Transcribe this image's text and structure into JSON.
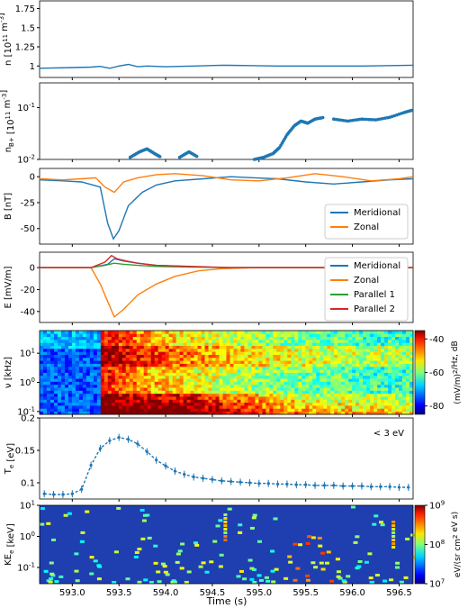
{
  "figure": {
    "xlabel": "Time (s)",
    "xlim": [
      592.65,
      596.65
    ],
    "xticks": [
      593.0,
      593.5,
      594.0,
      594.5,
      595.0,
      595.5,
      596.0,
      596.5
    ]
  },
  "chart_data": [
    {
      "type": "line",
      "ylabel": "n [10^11 m^-3]",
      "ylim": [
        0.85,
        1.85
      ],
      "yticks": [
        1.0,
        1.25,
        1.5,
        1.75
      ],
      "series": [
        {
          "color": "#1f77b4",
          "x": [
            592.65,
            592.8,
            593.0,
            593.2,
            593.3,
            593.4,
            593.5,
            593.6,
            593.7,
            593.8,
            594.0,
            594.3,
            594.6,
            594.9,
            595.2,
            595.5,
            595.8,
            596.1,
            596.4,
            596.65
          ],
          "y": [
            0.97,
            0.975,
            0.98,
            0.985,
            0.995,
            0.97,
            1.0,
            1.02,
            0.99,
            1.0,
            0.99,
            1.0,
            1.01,
            1.005,
            1.0,
            1.0,
            1.0,
            1.0,
            1.005,
            1.01
          ]
        }
      ]
    },
    {
      "type": "scatter",
      "ylabel": "n_B+ [10^11 m^-3]",
      "yscale": "log",
      "ylim": [
        0.01,
        0.3
      ],
      "yticks": [
        0.01,
        0.1
      ],
      "ytick_labels": [
        "10^-2",
        "10^-1"
      ],
      "series": [
        {
          "color": "#1f77b4",
          "segments": [
            {
              "x": [
                593.62,
                593.72,
                593.8,
                593.88,
                593.95
              ],
              "y": [
                0.011,
                0.014,
                0.016,
                0.013,
                0.011
              ]
            },
            {
              "x": [
                594.15,
                594.25,
                594.35
              ],
              "y": [
                0.011,
                0.014,
                0.011
              ]
            },
            {
              "x": [
                594.95,
                595.05,
                595.15,
                595.22,
                595.3,
                595.38,
                595.45,
                595.52,
                595.6,
                595.7
              ],
              "y": [
                0.01,
                0.011,
                0.013,
                0.017,
                0.03,
                0.045,
                0.055,
                0.05,
                0.06,
                0.065
              ]
            },
            {
              "x": [
                595.8,
                595.95,
                596.1,
                596.25,
                596.4,
                596.55,
                596.65
              ],
              "y": [
                0.06,
                0.055,
                0.06,
                0.058,
                0.065,
                0.08,
                0.09
              ]
            }
          ]
        }
      ]
    },
    {
      "type": "line",
      "ylabel": "B [nT]",
      "ylim": [
        -65,
        8
      ],
      "yticks": [
        0,
        -25,
        -50
      ],
      "legend": "lower right",
      "series": [
        {
          "name": "Meridional",
          "color": "#1f77b4",
          "x": [
            592.65,
            592.9,
            593.1,
            593.3,
            593.38,
            593.44,
            593.5,
            593.6,
            593.75,
            593.9,
            594.1,
            594.4,
            594.7,
            594.95,
            595.2,
            595.5,
            595.8,
            596.1,
            596.4,
            596.65
          ],
          "y": [
            -3,
            -4,
            -5,
            -10,
            -45,
            -60,
            -52,
            -28,
            -15,
            -8,
            -4,
            -2,
            0,
            -1,
            -2,
            -5,
            -7,
            -5,
            -3,
            -2
          ]
        },
        {
          "name": "Zonal",
          "color": "#ff7f0e",
          "x": [
            592.65,
            592.9,
            593.1,
            593.25,
            593.35,
            593.45,
            593.55,
            593.7,
            593.9,
            594.1,
            594.4,
            594.7,
            595.0,
            595.3,
            595.6,
            595.9,
            596.2,
            596.5,
            596.65
          ],
          "y": [
            -2,
            -3,
            -2,
            -1,
            -10,
            -15,
            -5,
            -1,
            2,
            3,
            1,
            -3,
            -4,
            -1,
            3,
            0,
            -4,
            -2,
            0
          ]
        }
      ]
    },
    {
      "type": "line",
      "ylabel": "E [mV/m]",
      "ylim": [
        -50,
        14
      ],
      "yticks": [
        0,
        -20,
        -40
      ],
      "legend": "right",
      "series": [
        {
          "name": "Meridional",
          "color": "#1f77b4",
          "x": [
            592.65,
            593.2,
            593.38,
            593.45,
            593.55,
            593.7,
            593.9,
            594.2,
            594.6,
            595.0,
            595.5,
            596.0,
            596.65
          ],
          "y": [
            0,
            0,
            3,
            8,
            6,
            4,
            2,
            1,
            0,
            0,
            0,
            0,
            0
          ]
        },
        {
          "name": "Zonal",
          "color": "#ff7f0e",
          "x": [
            592.65,
            593.2,
            593.3,
            593.4,
            593.45,
            593.55,
            593.7,
            593.9,
            594.1,
            594.35,
            594.6,
            595.0,
            595.5,
            596.0,
            596.65
          ],
          "y": [
            0,
            0,
            -15,
            -35,
            -45,
            -38,
            -25,
            -15,
            -8,
            -3,
            -1,
            0,
            0,
            0,
            0
          ]
        },
        {
          "name": "Parallel 1",
          "color": "#2ca02c",
          "x": [
            592.65,
            593.2,
            593.35,
            593.45,
            593.55,
            593.7,
            593.9,
            594.3,
            594.7,
            595.2,
            595.8,
            596.65
          ],
          "y": [
            0,
            0,
            2,
            4,
            3,
            2,
            1,
            0.5,
            0,
            0,
            0,
            0
          ]
        },
        {
          "name": "Parallel 2",
          "color": "#d62728",
          "x": [
            592.65,
            593.2,
            593.35,
            593.42,
            593.48,
            593.58,
            593.7,
            593.9,
            594.3,
            594.7,
            595.2,
            595.8,
            596.65
          ],
          "y": [
            0,
            0,
            5,
            11,
            8,
            6,
            4,
            2,
            1,
            0,
            0,
            0,
            0
          ]
        }
      ]
    },
    {
      "type": "heatmap",
      "ylabel": "ν [kHz]",
      "yscale": "log",
      "ylim": [
        0.08,
        60
      ],
      "yticks": [
        0.1,
        1,
        10
      ],
      "ytick_labels": [
        "10^-1",
        "10^0",
        "10^1"
      ],
      "colorbar": {
        "label": "(mV/m)^2/Hz, dB",
        "range": [
          -85,
          -35
        ],
        "ticks": [
          -40,
          -60,
          -80
        ],
        "colormap": "jet"
      },
      "event_start": 593.3
    },
    {
      "type": "line",
      "ylabel": "T_e [eV]",
      "ylim": [
        0.075,
        0.2
      ],
      "yticks": [
        0.1,
        0.15,
        0.2
      ],
      "annotation": "< 3 eV",
      "series": [
        {
          "color": "#1f77b4",
          "style": "dashed-with-errorbars",
          "x": [
            592.7,
            592.8,
            592.9,
            593.0,
            593.1,
            593.2,
            593.3,
            593.4,
            593.5,
            593.6,
            593.7,
            593.8,
            593.9,
            594.0,
            594.1,
            594.2,
            594.3,
            594.4,
            594.5,
            594.6,
            594.7,
            594.8,
            594.9,
            595.0,
            595.1,
            595.2,
            595.3,
            595.4,
            595.5,
            595.6,
            595.7,
            595.8,
            595.9,
            596.0,
            596.1,
            596.2,
            596.3,
            596.4,
            596.5,
            596.6
          ],
          "y": [
            0.083,
            0.082,
            0.082,
            0.083,
            0.09,
            0.127,
            0.153,
            0.165,
            0.17,
            0.167,
            0.16,
            0.148,
            0.135,
            0.126,
            0.118,
            0.113,
            0.109,
            0.107,
            0.105,
            0.103,
            0.102,
            0.101,
            0.1,
            0.099,
            0.099,
            0.098,
            0.098,
            0.097,
            0.097,
            0.096,
            0.096,
            0.096,
            0.095,
            0.095,
            0.095,
            0.094,
            0.094,
            0.094,
            0.093,
            0.093
          ]
        }
      ]
    },
    {
      "type": "heatmap",
      "ylabel": "KE_e [keV]",
      "yscale": "log",
      "ylim": [
        0.03,
        10
      ],
      "yticks": [
        0.1,
        1,
        10
      ],
      "ytick_labels": [
        "10^-1",
        "10^0",
        "10^1"
      ],
      "colorbar": {
        "label": "eV/(sr cm^2 eV s)",
        "scale": "log",
        "range": [
          10000000,
          1000000000
        ],
        "ticks": [
          10000000,
          100000000,
          1000000000
        ],
        "tick_labels": [
          "10^7",
          "10^8",
          "10^9"
        ],
        "colormap": "jet"
      }
    }
  ]
}
